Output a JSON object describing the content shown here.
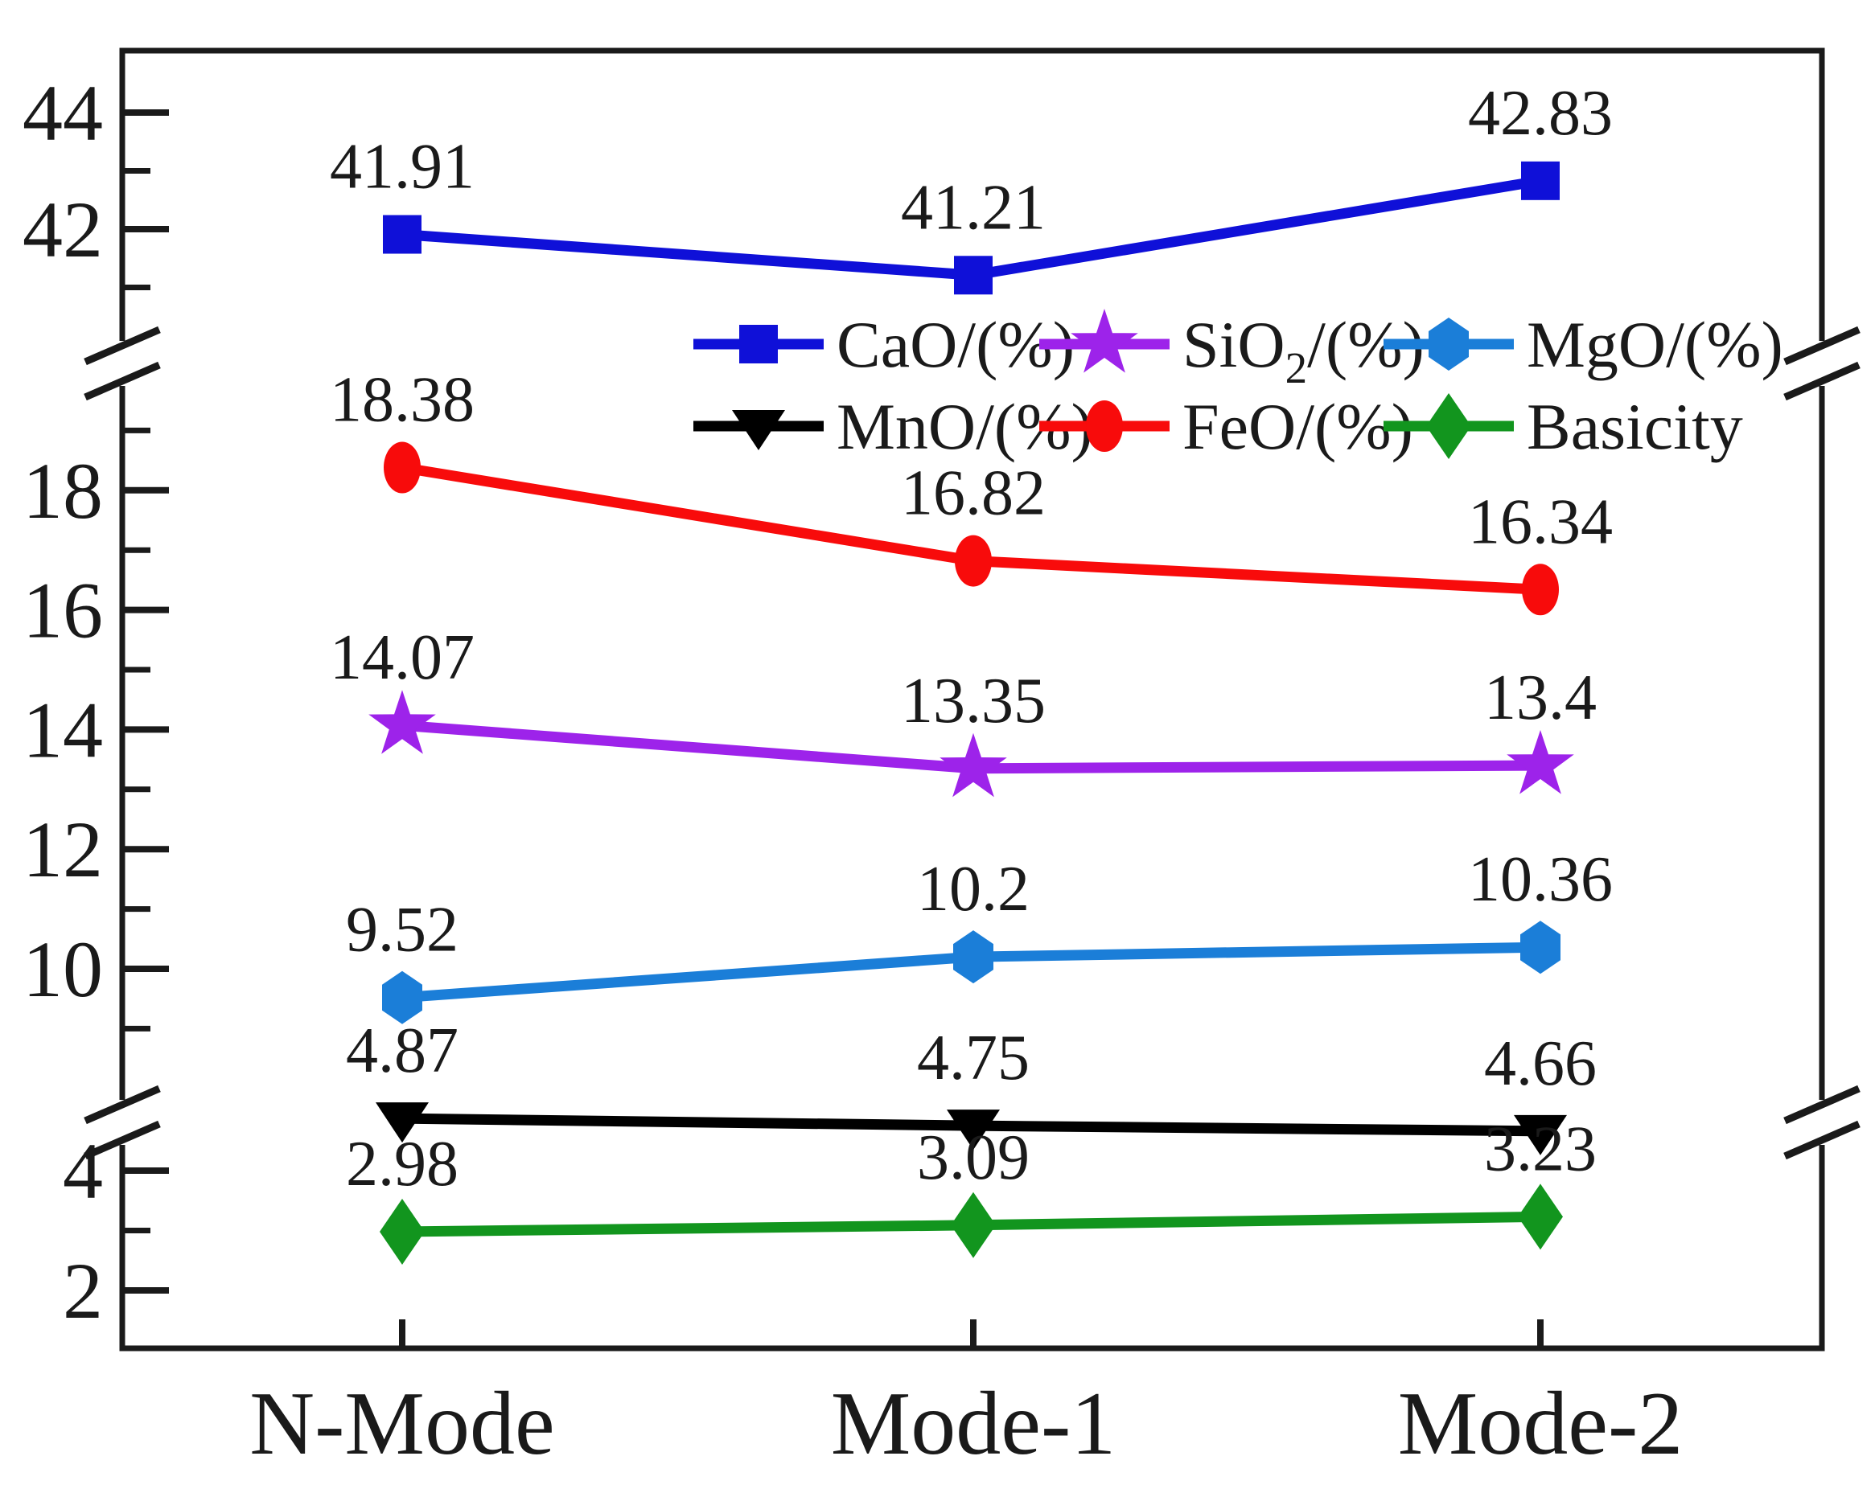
{
  "figure": {
    "background": "#ffffff",
    "axis_color": "#1a1a1a"
  },
  "chart_data": {
    "type": "line",
    "title": "",
    "xlabel": "",
    "ylabel": "",
    "grid": false,
    "categories": [
      "N-Mode",
      "Mode-1",
      "Mode-2"
    ],
    "series": [
      {
        "name": "CaO/(%)",
        "label_parts": [
          {
            "t": "CaO/(%)"
          }
        ],
        "marker": "square",
        "color": "#0f10d8",
        "values": [
          41.91,
          41.21,
          42.83
        ],
        "point_labels": [
          "41.91",
          "41.21",
          "42.83"
        ]
      },
      {
        "name": "SiO2/(%)",
        "label_parts": [
          {
            "t": "SiO"
          },
          {
            "t": "2",
            "sub": true
          },
          {
            "t": "/(%)"
          }
        ],
        "marker": "star",
        "color": "#9d23ea",
        "values": [
          14.07,
          13.35,
          13.4
        ],
        "point_labels": [
          "14.07",
          "13.35",
          "13.4"
        ]
      },
      {
        "name": "MgO/(%)",
        "label_parts": [
          {
            "t": "MgO/(%)"
          }
        ],
        "marker": "hexagon",
        "color": "#1b7ed8",
        "values": [
          9.52,
          10.2,
          10.36
        ],
        "point_labels": [
          "9.52",
          "10.2",
          "10.36"
        ]
      },
      {
        "name": "MnO/(%)",
        "label_parts": [
          {
            "t": "MnO/(%)"
          }
        ],
        "marker": "triangle-down",
        "color": "#000000",
        "values": [
          4.87,
          4.75,
          4.66
        ],
        "point_labels": [
          "4.87",
          "4.75",
          "4.66"
        ]
      },
      {
        "name": "FeO/(%)",
        "label_parts": [
          {
            "t": "FeO/(%)"
          }
        ],
        "marker": "circle",
        "color": "#f80b0b",
        "values": [
          18.38,
          16.82,
          16.34
        ],
        "point_labels": [
          "18.38",
          "16.82",
          "16.34"
        ]
      },
      {
        "name": "Basicity",
        "label_parts": [
          {
            "t": "Basicity"
          }
        ],
        "marker": "diamond",
        "color": "#12951e",
        "values": [
          2.98,
          3.09,
          3.23
        ],
        "point_labels": [
          "2.98",
          "3.09",
          "3.23"
        ]
      }
    ],
    "y_axis": {
      "broken_axis": true,
      "segments": [
        {
          "range": [
            40.4,
            45.0
          ],
          "major": [
            44,
            42
          ],
          "minor": [
            43,
            41
          ]
        },
        {
          "range": [
            8.4,
            19.3
          ],
          "major": [
            18,
            16,
            14,
            12,
            10
          ],
          "minor": [
            19,
            17,
            15,
            13,
            11,
            9
          ]
        },
        {
          "range": [
            1.1,
            5.0
          ],
          "major": [
            4,
            2
          ],
          "minor": [
            3
          ]
        }
      ]
    },
    "legend": {
      "position": "inside-top",
      "rows": [
        [
          "CaO/(%)",
          "SiO2/(%)",
          "MgO/(%)"
        ],
        [
          "MnO/(%)",
          "FeO/(%)",
          "Basicity"
        ]
      ]
    }
  }
}
